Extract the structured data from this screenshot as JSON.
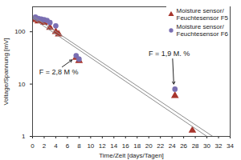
{
  "chart_data": {
    "type": "scatter",
    "x_label": "Time/Zeit [days/Tagen]",
    "y_label": "Voltage/Spannung [mV]",
    "log": "y",
    "grid": false,
    "legend": "top-right",
    "xlim": [
      0,
      34
    ],
    "xticks": [
      0,
      2,
      4,
      6,
      8,
      10,
      12,
      14,
      16,
      18,
      20,
      22,
      24,
      26,
      28,
      30,
      32,
      34
    ],
    "ylim": [
      1,
      300
    ],
    "yticks": [
      1,
      10,
      100
    ],
    "series": [
      {
        "name": "Moisture sensor/ Feuchtesensor F5",
        "color": "#a8352c",
        "marker": "triangle",
        "type": "scatter",
        "x": [
          0.5,
          1,
          2,
          3,
          4,
          4.5,
          7.5,
          8,
          24.5,
          27.5
        ],
        "values": [
          170,
          160,
          150,
          120,
          100,
          90,
          32,
          28,
          6,
          1.3
        ]
      },
      {
        "name": "Moisture sensor/ Feuchtesensor F6",
        "color": "#7a6fb2",
        "marker": "circle",
        "type": "scatter",
        "x": [
          0.5,
          1,
          1.5,
          2,
          2.5,
          3,
          4,
          7.5,
          8,
          24.5
        ],
        "values": [
          190,
          180,
          175,
          170,
          165,
          150,
          130,
          35,
          30,
          8
        ]
      },
      {
        "type": "line",
        "color": "#8c8c8c",
        "line_style": "solid",
        "x": [
          0,
          31
        ],
        "values": [
          200,
          1
        ]
      },
      {
        "type": "line",
        "color": "#8c8c8c",
        "line_style": "solid",
        "x": [
          0,
          30
        ],
        "values": [
          180,
          1
        ]
      }
    ],
    "annotations": [
      {
        "text": "F = 2,8 M %",
        "x": 4.5,
        "y": 17,
        "arrow_x": 6.8,
        "arrow_y": 29
      },
      {
        "text": "F = 1,9 M. %",
        "x": 23.5,
        "y": 38,
        "arrow_x": 24.3,
        "arrow_y": 10
      }
    ]
  }
}
